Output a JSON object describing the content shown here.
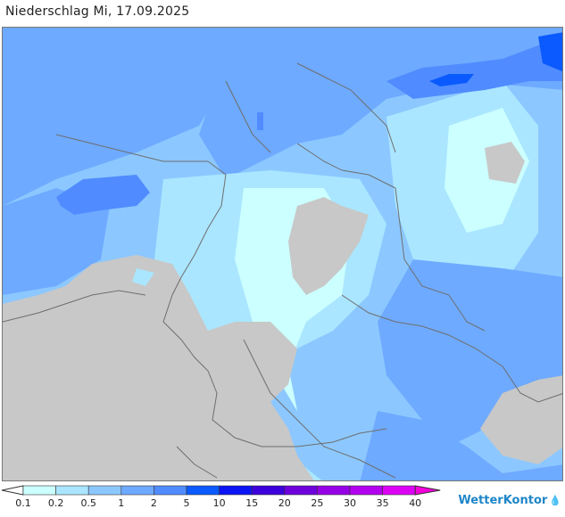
{
  "title": "Niederschlag Mi, 17.09.2025",
  "legend": {
    "colors": [
      "#ffffff",
      "#ccffff",
      "#aae6ff",
      "#8cc8ff",
      "#6eaaff",
      "#508cff",
      "#0a5aff",
      "#0a14f5",
      "#3c00dc",
      "#6e00dc",
      "#9600e6",
      "#b400f0",
      "#dc00f5",
      "#f500dc"
    ],
    "labels": [
      "0.1",
      "0.2",
      "0.5",
      "1",
      "2",
      "5",
      "10",
      "15",
      "20",
      "25",
      "30",
      "35",
      "40"
    ]
  },
  "brand": {
    "name": "WetterKontor",
    "icon": "raindrop-icon"
  },
  "map": {
    "no_data_color": "#c8c8c8",
    "border_color": "#6e6e6e"
  }
}
